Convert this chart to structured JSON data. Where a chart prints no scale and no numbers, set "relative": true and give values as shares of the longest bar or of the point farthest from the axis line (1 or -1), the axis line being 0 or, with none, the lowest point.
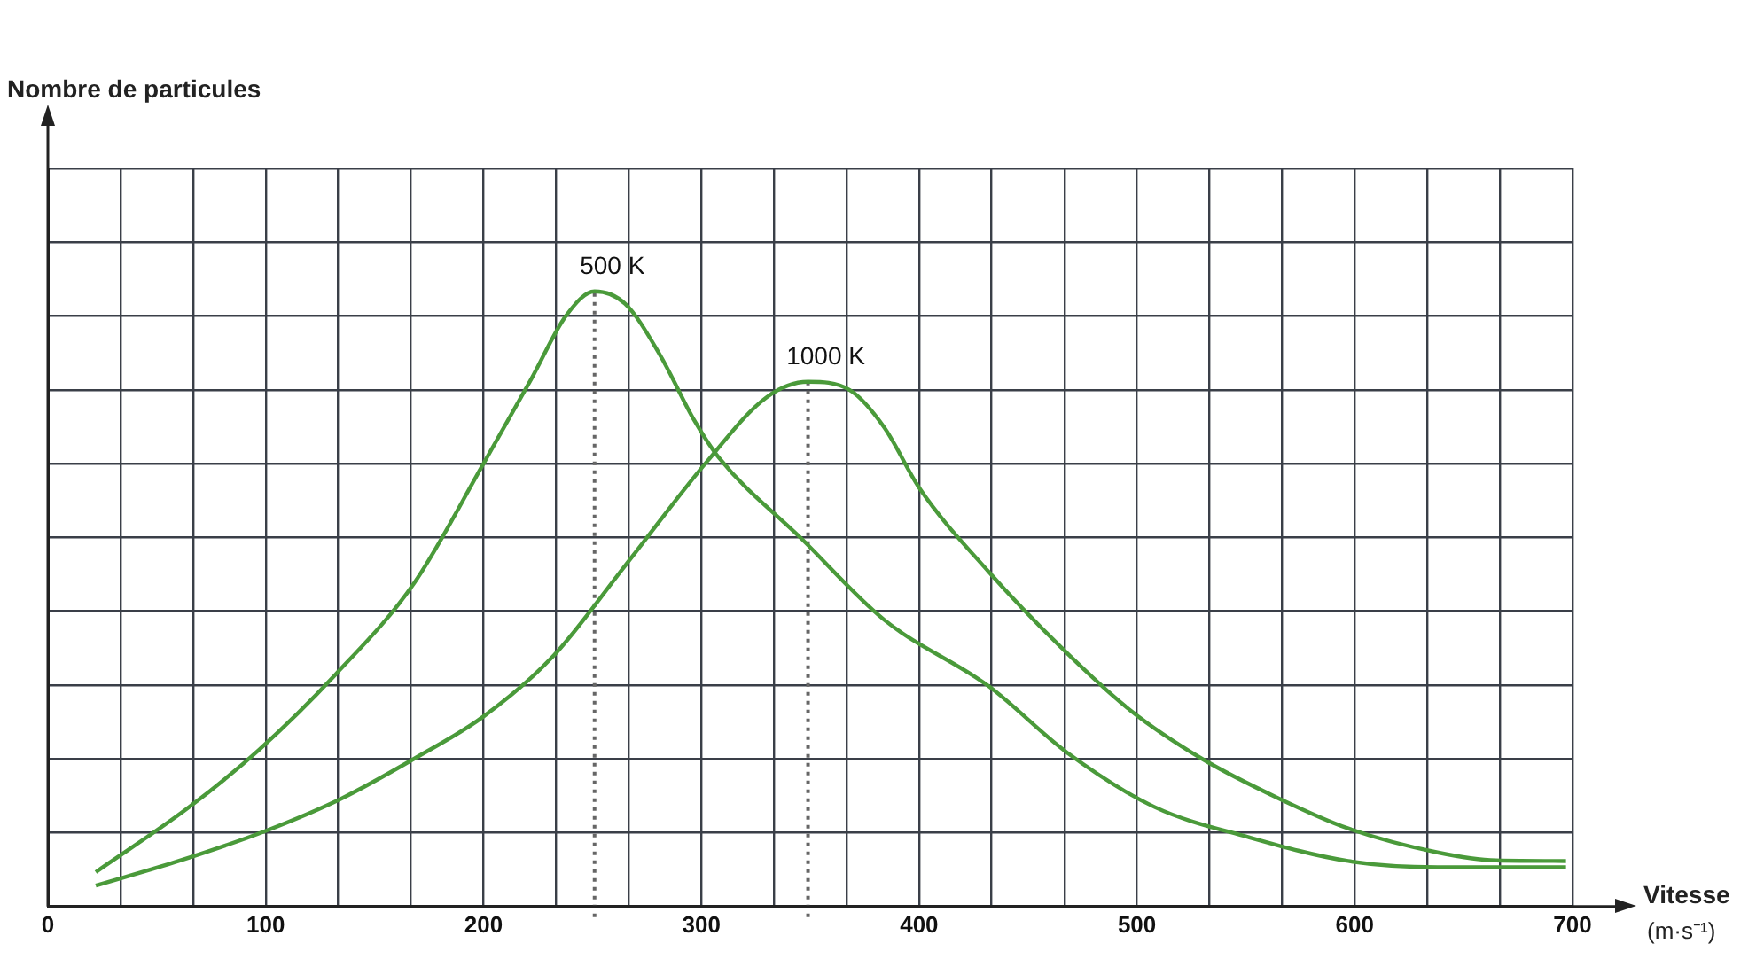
{
  "chart_data": {
    "type": "line",
    "annotations": [
      "Nombre de particules"
    ],
    "xlabel": "Vitesse (m·s⁻¹)",
    "relative": true,
    "grid": true,
    "legend": false,
    "marker": "none",
    "line_style": "solid",
    "xlim": [
      0,
      700
    ],
    "xticks": [
      0,
      {
        "value": 33.3,
        "label": null
      },
      {
        "value": 66.7,
        "label": null
      },
      100,
      {
        "value": 133.3,
        "label": null
      },
      {
        "value": 166.7,
        "label": null
      },
      200,
      {
        "value": 233.3,
        "label": null
      },
      {
        "value": 266.7,
        "label": null
      },
      300,
      {
        "value": 333.3,
        "label": null
      },
      {
        "value": 366.7,
        "label": null
      },
      400,
      {
        "value": 433.3,
        "label": null
      },
      {
        "value": 466.7,
        "label": null
      },
      500,
      {
        "value": 533.3,
        "label": null
      },
      {
        "value": 566.7,
        "label": null
      },
      600,
      {
        "value": 633.3,
        "label": null
      },
      {
        "value": 666.7,
        "label": null
      },
      700
    ],
    "series": [
      {
        "name": "500 K",
        "color": "#4a9a3a",
        "x": [
          22,
          65,
          97,
          132,
          168,
          200,
          222,
          238,
          251,
          265,
          281,
          297,
          308,
          346,
          384,
          432,
          468,
          508,
          551,
          597,
          638,
          697
        ],
        "values": [
          0.056,
          0.162,
          0.255,
          0.377,
          0.525,
          0.72,
          0.858,
          0.961,
          1.0,
          0.98,
          0.897,
          0.789,
          0.73,
          0.598,
          0.466,
          0.358,
          0.25,
          0.162,
          0.113,
          0.074,
          0.064,
          0.064
        ]
      },
      {
        "name": "1000 K",
        "color": "#4a9a3a",
        "x": [
          22,
          60,
          100,
          135,
          168,
          200,
          232,
          265,
          303,
          330,
          349,
          368,
          384,
          400,
          432,
          465,
          497,
          530,
          565,
          597,
          638,
          665,
          697
        ],
        "values": [
          0.034,
          0.074,
          0.123,
          0.176,
          0.24,
          0.309,
          0.407,
          0.554,
          0.725,
          0.828,
          0.853,
          0.84,
          0.779,
          0.681,
          0.544,
          0.422,
          0.319,
          0.24,
          0.176,
          0.127,
          0.088,
          0.075,
          0.074
        ]
      }
    ],
    "ref_lines": [
      {
        "axis": "x",
        "value": 251,
        "line_style": "dotted",
        "color": "#666666"
      },
      {
        "axis": "x",
        "value": 349,
        "line_style": "dotted",
        "color": "#666666"
      }
    ]
  }
}
